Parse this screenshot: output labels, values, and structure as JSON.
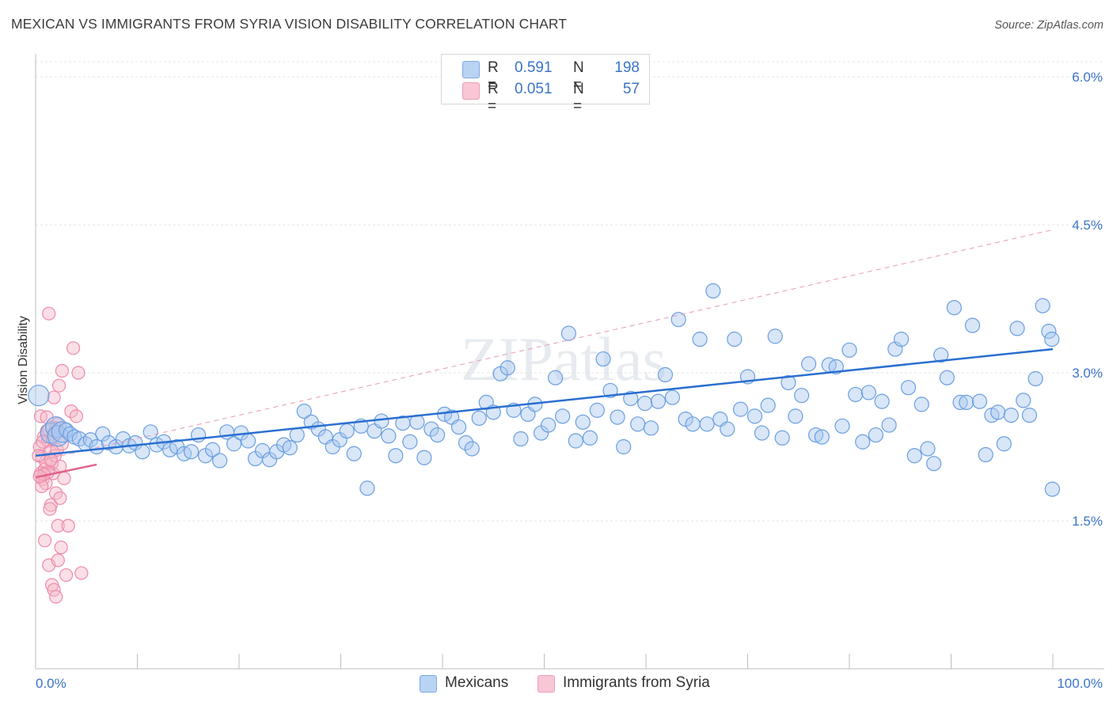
{
  "title": "MEXICAN VS IMMIGRANTS FROM SYRIA VISION DISABILITY CORRELATION CHART",
  "source": "Source: ZipAtlas.com",
  "watermark": "ZIPatlas",
  "legend": {
    "rows": [
      {
        "r_label": "R =",
        "r_value": "0.591",
        "n_label": "N =",
        "n_value": "198"
      },
      {
        "r_label": "R =",
        "r_value": "0.051",
        "n_label": "N =",
        "n_value": "57"
      }
    ]
  },
  "bottom_legend": [
    "Mexicans",
    "Immigrants from Syria"
  ],
  "colors": {
    "blue_fill": "#a8c8f0",
    "blue_stroke": "#6a9ee0",
    "blue_line": "#2a6fd0",
    "pink_fill": "#f5b7c8",
    "pink_stroke": "#ef8aa8",
    "pink_line": "#e0648a",
    "tick_label": "#3b74c9",
    "grid": "#e4e4e4"
  },
  "chart_data": {
    "type": "scatter",
    "title": "MEXICAN VS IMMIGRANTS FROM SYRIA VISION DISABILITY CORRELATION CHART",
    "xlabel": "",
    "ylabel": "Vision Disability",
    "xlim": [
      0,
      100
    ],
    "ylim": [
      0,
      6.2
    ],
    "x_tick_labels": [
      "0.0%",
      "100.0%"
    ],
    "y_ticks": [
      1.5,
      3.0,
      4.5,
      6.0
    ],
    "y_tick_labels": [
      "1.5%",
      "3.0%",
      "4.5%",
      "6.0%"
    ],
    "grid": "horizontal dashed",
    "legend_position": "top-center",
    "series": [
      {
        "name": "Mexicans",
        "r": 0.591,
        "n": 198,
        "trend": {
          "x0": 0,
          "y0": 2.16,
          "x1": 100,
          "y1": 3.24
        },
        "dashed_trend": {
          "x0": 0,
          "y0": 2.1,
          "x1": 100,
          "y1": 4.45
        },
        "points": [
          [
            0.3,
            2.77
          ],
          [
            1.5,
            2.39
          ],
          [
            2.0,
            2.45
          ],
          [
            2.2,
            2.36
          ],
          [
            2.6,
            2.4
          ],
          [
            3.0,
            2.42
          ],
          [
            3.4,
            2.38
          ],
          [
            3.8,
            2.35
          ],
          [
            4.3,
            2.33
          ],
          [
            4.9,
            2.28
          ],
          [
            5.4,
            2.32
          ],
          [
            6.0,
            2.25
          ],
          [
            6.6,
            2.38
          ],
          [
            7.2,
            2.29
          ],
          [
            7.9,
            2.25
          ],
          [
            8.6,
            2.33
          ],
          [
            9.2,
            2.26
          ],
          [
            9.8,
            2.29
          ],
          [
            10.5,
            2.2
          ],
          [
            11.3,
            2.4
          ],
          [
            11.9,
            2.27
          ],
          [
            12.6,
            2.3
          ],
          [
            13.2,
            2.22
          ],
          [
            13.9,
            2.25
          ],
          [
            14.6,
            2.18
          ],
          [
            15.3,
            2.2
          ],
          [
            16.0,
            2.37
          ],
          [
            16.7,
            2.16
          ],
          [
            17.4,
            2.22
          ],
          [
            18.1,
            2.11
          ],
          [
            18.8,
            2.4
          ],
          [
            19.5,
            2.28
          ],
          [
            20.2,
            2.39
          ],
          [
            20.9,
            2.31
          ],
          [
            21.6,
            2.13
          ],
          [
            22.3,
            2.21
          ],
          [
            23.0,
            2.12
          ],
          [
            23.7,
            2.2
          ],
          [
            24.4,
            2.27
          ],
          [
            25.0,
            2.24
          ],
          [
            25.7,
            2.37
          ],
          [
            26.4,
            2.61
          ],
          [
            27.1,
            2.5
          ],
          [
            27.8,
            2.43
          ],
          [
            28.5,
            2.35
          ],
          [
            29.2,
            2.25
          ],
          [
            29.9,
            2.32
          ],
          [
            30.6,
            2.41
          ],
          [
            31.3,
            2.18
          ],
          [
            32.0,
            2.46
          ],
          [
            32.6,
            1.83
          ],
          [
            33.3,
            2.41
          ],
          [
            34.0,
            2.51
          ],
          [
            34.7,
            2.36
          ],
          [
            35.4,
            2.16
          ],
          [
            36.1,
            2.49
          ],
          [
            36.8,
            2.3
          ],
          [
            37.5,
            2.5
          ],
          [
            38.2,
            2.14
          ],
          [
            38.9,
            2.43
          ],
          [
            39.5,
            2.37
          ],
          [
            40.2,
            2.58
          ],
          [
            40.9,
            2.55
          ],
          [
            41.6,
            2.45
          ],
          [
            42.3,
            2.29
          ],
          [
            42.9,
            2.23
          ],
          [
            43.6,
            2.54
          ],
          [
            44.3,
            2.7
          ],
          [
            45.0,
            2.6
          ],
          [
            45.7,
            2.99
          ],
          [
            46.4,
            3.05
          ],
          [
            47.0,
            2.62
          ],
          [
            47.7,
            2.33
          ],
          [
            48.4,
            2.58
          ],
          [
            49.1,
            2.68
          ],
          [
            49.7,
            2.39
          ],
          [
            50.4,
            2.47
          ],
          [
            51.1,
            2.95
          ],
          [
            51.8,
            2.56
          ],
          [
            52.4,
            3.4
          ],
          [
            53.1,
            2.31
          ],
          [
            53.8,
            2.5
          ],
          [
            54.5,
            2.34
          ],
          [
            55.2,
            2.62
          ],
          [
            55.8,
            3.14
          ],
          [
            56.5,
            2.82
          ],
          [
            57.2,
            2.55
          ],
          [
            57.8,
            2.25
          ],
          [
            58.5,
            2.74
          ],
          [
            59.2,
            2.48
          ],
          [
            59.9,
            2.69
          ],
          [
            60.5,
            2.44
          ],
          [
            61.2,
            2.71
          ],
          [
            61.9,
            2.98
          ],
          [
            62.6,
            2.75
          ],
          [
            63.2,
            3.54
          ],
          [
            63.9,
            2.53
          ],
          [
            64.6,
            2.48
          ],
          [
            65.3,
            3.34
          ],
          [
            66.0,
            2.48
          ],
          [
            66.6,
            3.83
          ],
          [
            67.3,
            2.53
          ],
          [
            68.0,
            2.43
          ],
          [
            68.7,
            3.34
          ],
          [
            69.3,
            2.63
          ],
          [
            70.0,
            2.96
          ],
          [
            70.7,
            2.56
          ],
          [
            71.4,
            2.39
          ],
          [
            72.0,
            2.67
          ],
          [
            72.7,
            3.37
          ],
          [
            73.4,
            2.34
          ],
          [
            74.0,
            2.9
          ],
          [
            74.7,
            2.56
          ],
          [
            75.3,
            2.77
          ],
          [
            76.0,
            3.09
          ],
          [
            76.7,
            2.37
          ],
          [
            77.3,
            2.35
          ],
          [
            78.0,
            3.08
          ],
          [
            78.7,
            3.06
          ],
          [
            79.3,
            2.46
          ],
          [
            80.0,
            3.23
          ],
          [
            80.6,
            2.78
          ],
          [
            81.3,
            2.3
          ],
          [
            81.9,
            2.8
          ],
          [
            82.6,
            2.37
          ],
          [
            83.2,
            2.71
          ],
          [
            83.9,
            2.47
          ],
          [
            84.5,
            3.24
          ],
          [
            85.1,
            3.34
          ],
          [
            85.8,
            2.85
          ],
          [
            86.4,
            2.16
          ],
          [
            87.1,
            2.68
          ],
          [
            87.7,
            2.23
          ],
          [
            88.3,
            2.08
          ],
          [
            89.0,
            3.18
          ],
          [
            89.6,
            2.95
          ],
          [
            90.3,
            3.66
          ],
          [
            90.9,
            2.7
          ],
          [
            91.5,
            2.7
          ],
          [
            92.1,
            3.48
          ],
          [
            92.8,
            2.71
          ],
          [
            93.4,
            2.17
          ],
          [
            94.0,
            2.57
          ],
          [
            94.6,
            2.6
          ],
          [
            95.2,
            2.28
          ],
          [
            95.9,
            2.57
          ],
          [
            96.5,
            3.45
          ],
          [
            97.1,
            2.72
          ],
          [
            97.7,
            2.57
          ],
          [
            98.3,
            2.94
          ],
          [
            99.0,
            3.68
          ],
          [
            99.6,
            3.42
          ],
          [
            99.9,
            3.34
          ],
          [
            99.95,
            1.82
          ]
        ],
        "points_note": "x axis 0-100 maps the 0.0%-100.0% population share"
      },
      {
        "name": "Immigrants from Syria",
        "r": 0.051,
        "n": 57,
        "trend": {
          "x0": 0,
          "y0": 1.94,
          "x1": 6,
          "y1": 2.07
        },
        "points": [
          [
            0.4,
            2.25
          ],
          [
            0.5,
            1.98
          ],
          [
            0.6,
            2.15
          ],
          [
            0.7,
            1.92
          ],
          [
            0.8,
            2.35
          ],
          [
            0.9,
            2.02
          ],
          [
            1.0,
            1.88
          ],
          [
            1.1,
            2.41
          ],
          [
            1.2,
            2.31
          ],
          [
            1.3,
            3.6
          ],
          [
            1.4,
            2.2
          ],
          [
            1.5,
            1.66
          ],
          [
            1.6,
            2.08
          ],
          [
            1.7,
            1.98
          ],
          [
            1.8,
            2.75
          ],
          [
            1.9,
            2.16
          ],
          [
            2.0,
            1.78
          ],
          [
            2.1,
            2.48
          ],
          [
            2.2,
            1.45
          ],
          [
            2.3,
            2.87
          ],
          [
            2.4,
            1.73
          ],
          [
            2.5,
            1.23
          ],
          [
            2.6,
            3.02
          ],
          [
            2.8,
            1.93
          ],
          [
            3.0,
            0.95
          ],
          [
            3.2,
            1.45
          ],
          [
            3.5,
            2.61
          ],
          [
            3.7,
            3.25
          ],
          [
            4.0,
            2.56
          ],
          [
            4.2,
            3.0
          ],
          [
            4.5,
            0.97
          ],
          [
            0.9,
            1.3
          ],
          [
            1.3,
            1.05
          ],
          [
            1.6,
            0.85
          ],
          [
            1.8,
            0.8
          ],
          [
            2.0,
            0.73
          ],
          [
            2.2,
            1.1
          ],
          [
            0.5,
            2.56
          ],
          [
            0.7,
            2.3
          ],
          [
            1.0,
            2.1
          ],
          [
            1.2,
            1.99
          ],
          [
            1.4,
            1.62
          ],
          [
            1.6,
            2.45
          ],
          [
            1.9,
            2.37
          ],
          [
            2.1,
            2.22
          ],
          [
            2.4,
            2.05
          ],
          [
            0.6,
            1.85
          ],
          [
            0.8,
            1.97
          ],
          [
            1.1,
            2.55
          ],
          [
            1.3,
            2.42
          ],
          [
            1.5,
            2.12
          ],
          [
            1.7,
            2.33
          ],
          [
            2.0,
            2.44
          ],
          [
            2.2,
            2.4
          ],
          [
            0.3,
            2.16
          ],
          [
            0.4,
            1.95
          ],
          [
            2.6,
            2.28
          ]
        ]
      }
    ]
  }
}
